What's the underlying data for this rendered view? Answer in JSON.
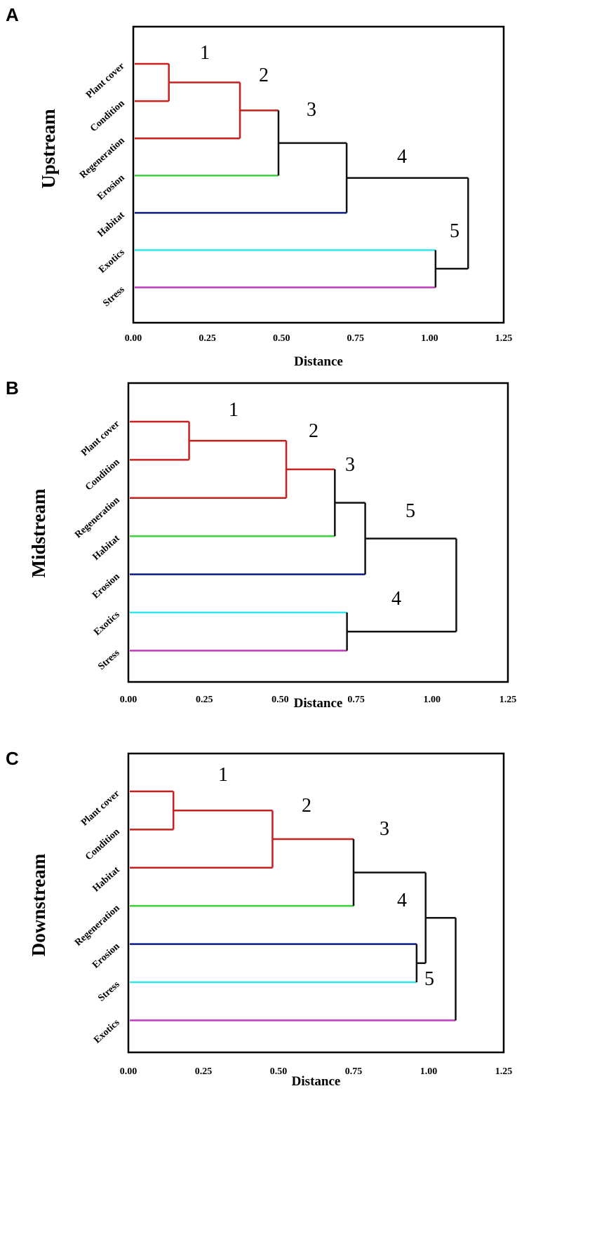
{
  "colors": {
    "red": "#c8201e",
    "black": "#111111",
    "green": "#3ad63a",
    "navy": "#0d1a8c",
    "cyan": "#33e5ee",
    "magenta": "#c23cc0"
  },
  "chart_data": [
    {
      "type": "dendrogram",
      "panel": "A",
      "ylabel": "Upstream",
      "xlabel": "Distance",
      "xlim": [
        0,
        1.25
      ],
      "xticks": [
        "0.00",
        "0.25",
        "0.50",
        "0.75",
        "1.00",
        "1.25"
      ],
      "xtick_values": [
        0,
        0.25,
        0.5,
        0.75,
        1.0,
        1.25
      ],
      "leaves": [
        "Plant cover",
        "Condition",
        "Regeneration",
        "Erosion",
        "Habitat",
        "Exotics",
        "Stress"
      ],
      "leaf_colors": [
        "red",
        "red",
        "red",
        "green",
        "navy",
        "cyan",
        "magenta"
      ],
      "merges": [
        {
          "label": "1",
          "left": "L0",
          "right": "L1",
          "height": 0.12,
          "color": "red"
        },
        {
          "label": "2",
          "left": "M1",
          "right": "L2",
          "height": 0.36,
          "color": "red"
        },
        {
          "label": "3",
          "left": "M2",
          "right": "L3",
          "height": 0.49,
          "color": "black"
        },
        {
          "label": "4",
          "left": "M3",
          "right": "L4",
          "height": 0.72,
          "color": "black"
        },
        {
          "label": "5",
          "left": "L5",
          "right": "L6",
          "height": 1.02,
          "color": "black"
        },
        {
          "label": "",
          "left": "M4",
          "right": "M5",
          "height": 1.13,
          "color": "black"
        }
      ],
      "cluster_labels": [
        "1",
        "2",
        "3",
        "4",
        "5"
      ]
    },
    {
      "type": "dendrogram",
      "panel": "B",
      "ylabel": "Midstream",
      "xlabel": "Distance",
      "xlim": [
        0,
        1.25
      ],
      "xticks": [
        "0.00",
        "0.25",
        "0.50",
        "0.75",
        "1.00",
        "1.25"
      ],
      "xtick_values": [
        0,
        0.25,
        0.5,
        0.75,
        1.0,
        1.25
      ],
      "leaves": [
        "Plant cover",
        "Condition",
        "Regeneration",
        "Habitat",
        "Erosion",
        "Exotics",
        "Stress"
      ],
      "leaf_colors": [
        "red",
        "red",
        "red",
        "green",
        "navy",
        "cyan",
        "magenta"
      ],
      "merges": [
        {
          "label": "1",
          "left": "L0",
          "right": "L1",
          "height": 0.2,
          "color": "red"
        },
        {
          "label": "2",
          "left": "M1",
          "right": "L2",
          "height": 0.52,
          "color": "red"
        },
        {
          "label": "3",
          "left": "M2",
          "right": "L3",
          "height": 0.68,
          "color": "black"
        },
        {
          "label": "",
          "left": "M3",
          "right": "L4",
          "height": 0.78,
          "color": "black"
        },
        {
          "label": "4",
          "left": "L5",
          "right": "L6",
          "height": 0.72,
          "color": "black"
        },
        {
          "label": "5",
          "left": "M4",
          "right": "M5",
          "height": 1.08,
          "color": "black"
        }
      ],
      "cluster_labels": [
        "1",
        "2",
        "3",
        "5",
        "4"
      ]
    },
    {
      "type": "dendrogram",
      "panel": "C",
      "ylabel": "Downstream",
      "xlabel": "Distance",
      "xlim": [
        0,
        1.25
      ],
      "xticks": [
        "0.00",
        "0.25",
        "0.50",
        "0.75",
        "1.00",
        "1.25"
      ],
      "xtick_values": [
        0,
        0.25,
        0.5,
        0.75,
        1.0,
        1.25
      ],
      "leaves": [
        "Plant cover",
        "Condition",
        "Habitat",
        "Regeneration",
        "Erosion",
        "Stress",
        "Exotics"
      ],
      "leaf_colors": [
        "red",
        "red",
        "red",
        "green",
        "navy",
        "cyan",
        "magenta"
      ],
      "merges": [
        {
          "label": "1",
          "left": "L0",
          "right": "L1",
          "height": 0.15,
          "color": "red"
        },
        {
          "label": "2",
          "left": "M1",
          "right": "L2",
          "height": 0.48,
          "color": "red"
        },
        {
          "label": "3",
          "left": "M2",
          "right": "L3",
          "height": 0.75,
          "color": "black"
        },
        {
          "label": "4",
          "left": "L4",
          "right": "L5",
          "height": 0.96,
          "color": "black"
        },
        {
          "label": "",
          "left": "M3",
          "right": "M4",
          "height": 0.99,
          "color": "black"
        },
        {
          "label": "5",
          "left": "M5",
          "right": "L6",
          "height": 1.09,
          "color": "black"
        }
      ],
      "cluster_labels": [
        "1",
        "2",
        "3",
        "4",
        "5"
      ]
    }
  ]
}
